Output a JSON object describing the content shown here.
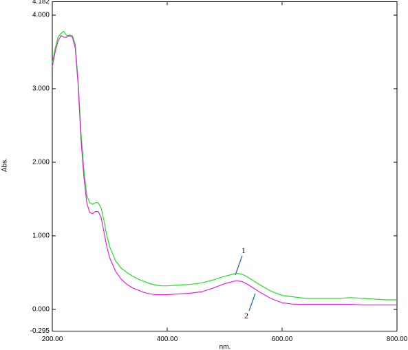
{
  "chart_data": {
    "type": "line",
    "x_label": "nm.",
    "y_label": "Abs.",
    "x": [
      200,
      205,
      210,
      215,
      220,
      225,
      230,
      235,
      240,
      245,
      250,
      255,
      260,
      265,
      270,
      275,
      280,
      285,
      290,
      295,
      300,
      310,
      320,
      330,
      340,
      350,
      360,
      370,
      380,
      390,
      400,
      420,
      440,
      460,
      480,
      500,
      520,
      530,
      540,
      560,
      580,
      600,
      620,
      640,
      660,
      680,
      700,
      720,
      740,
      760,
      780,
      800
    ],
    "series": [
      {
        "name": "1",
        "color": "#22dd22",
        "values": [
          3.35,
          3.55,
          3.7,
          3.75,
          3.78,
          3.72,
          3.73,
          3.72,
          3.6,
          3.1,
          2.4,
          1.9,
          1.55,
          1.45,
          1.43,
          1.45,
          1.45,
          1.38,
          1.2,
          1.0,
          0.85,
          0.66,
          0.56,
          0.5,
          0.45,
          0.41,
          0.38,
          0.35,
          0.33,
          0.32,
          0.32,
          0.33,
          0.34,
          0.36,
          0.4,
          0.45,
          0.49,
          0.48,
          0.44,
          0.34,
          0.25,
          0.19,
          0.17,
          0.15,
          0.15,
          0.15,
          0.15,
          0.16,
          0.15,
          0.14,
          0.13,
          0.13
        ]
      },
      {
        "name": "2",
        "color": "#dd22dd",
        "values": [
          3.3,
          3.5,
          3.65,
          3.72,
          3.7,
          3.7,
          3.72,
          3.7,
          3.55,
          3.05,
          2.3,
          1.8,
          1.45,
          1.32,
          1.3,
          1.33,
          1.33,
          1.25,
          1.05,
          0.85,
          0.7,
          0.52,
          0.41,
          0.34,
          0.29,
          0.26,
          0.23,
          0.21,
          0.2,
          0.2,
          0.2,
          0.21,
          0.22,
          0.24,
          0.29,
          0.35,
          0.39,
          0.38,
          0.34,
          0.24,
          0.15,
          0.09,
          0.07,
          0.07,
          0.07,
          0.07,
          0.07,
          0.07,
          0.06,
          0.06,
          0.06,
          0.06
        ]
      }
    ],
    "xlim": [
      200,
      800
    ],
    "ylim": [
      -0.295,
      4.182
    ],
    "xticks": [
      {
        "value": 200,
        "label": "200.00"
      },
      {
        "value": 400,
        "label": "400.00"
      },
      {
        "value": 600,
        "label": "600.00"
      },
      {
        "value": 800,
        "label": "800.00"
      }
    ],
    "yticks": [
      {
        "value": -0.295,
        "label": "-0.295"
      },
      {
        "value": 0,
        "label": "0.000"
      },
      {
        "value": 1,
        "label": "1.000"
      },
      {
        "value": 2,
        "label": "2.000"
      },
      {
        "value": 3,
        "label": "3.000"
      },
      {
        "value": 4,
        "label": "4.000"
      },
      {
        "value": 4.182,
        "label": "4.182"
      }
    ],
    "annotations": [
      "1",
      "2"
    ]
  }
}
